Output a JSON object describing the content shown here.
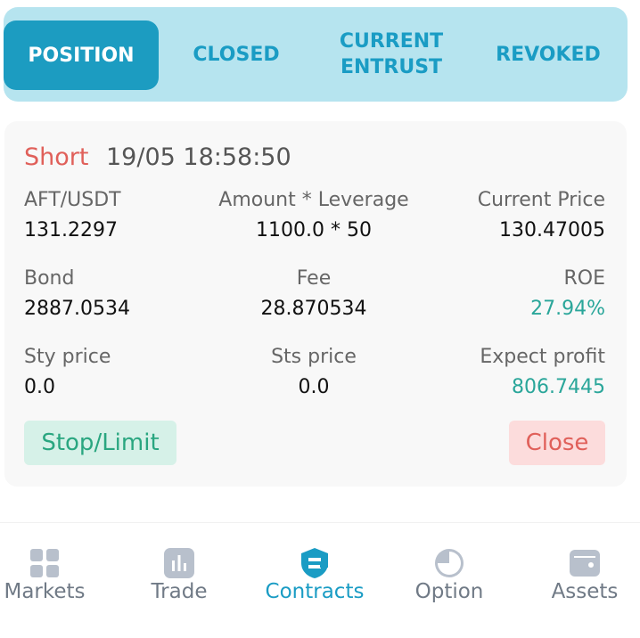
{
  "tabs": [
    {
      "label": "POSITION",
      "active": true
    },
    {
      "label": "CLOSED",
      "active": false
    },
    {
      "line1": "CURRENT",
      "line2": "ENTRUST",
      "active": false
    },
    {
      "label": "REVOKED",
      "active": false
    }
  ],
  "position": {
    "direction": "Short",
    "time": "19/05 18:58:50",
    "pair_label": "AFT/USDT",
    "pair_value": "131.2297",
    "amount_label": "Amount * Leverage",
    "amount_value": "1100.0 * 50",
    "price_label": "Current Price",
    "price_value": "130.47005",
    "bond_label": "Bond",
    "bond_value": "2887.0534",
    "fee_label": "Fee",
    "fee_value": "28.870534",
    "roe_label": "ROE",
    "roe_value": "27.94%",
    "sty_label": "Sty price",
    "sty_value": "0.0",
    "sts_label": "Sts price",
    "sts_value": "0.0",
    "profit_label": "Expect profit",
    "profit_value": "806.7445",
    "stop_button": "Stop/Limit",
    "close_button": "Close"
  },
  "nav": [
    {
      "label": "Markets",
      "icon": "grid-icon"
    },
    {
      "label": "Trade",
      "icon": "bar-chart-icon"
    },
    {
      "label": "Contracts",
      "icon": "contract-icon",
      "active": true
    },
    {
      "label": "Option",
      "icon": "pie-icon"
    },
    {
      "label": "Assets",
      "icon": "wallet-icon"
    }
  ],
  "colors": {
    "accent": "#1c9cc1",
    "tabbar_bg": "#b6e4ef",
    "short_red": "#e0605a",
    "positive_green": "#2aa69a",
    "nav_gray": "#707a86"
  }
}
